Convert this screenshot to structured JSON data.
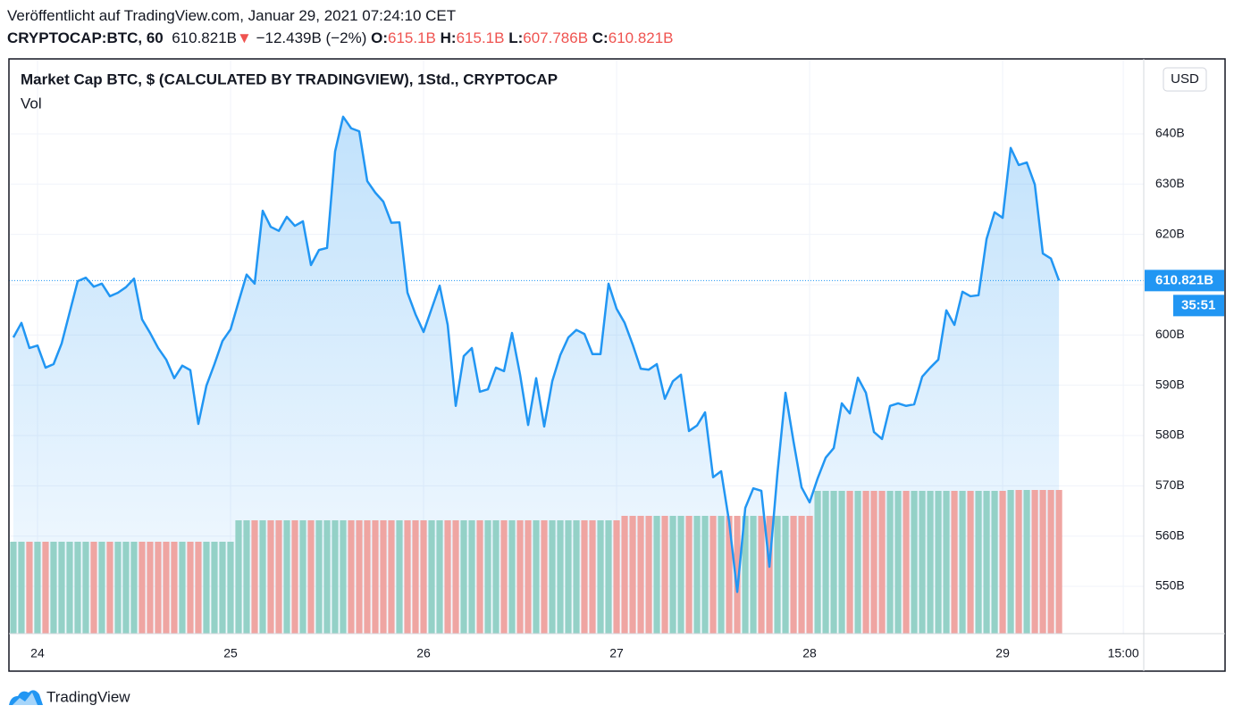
{
  "header": {
    "published": "Veröffentlicht auf TradingView.com, Januar 29, 2021 07:24:10 CET",
    "symbol": "CRYPTOCAP:BTC, 60",
    "last": "610.821B",
    "arrow": "▼",
    "change": "−12.439B (−2%)",
    "open_label": "O:",
    "open": "615.1B",
    "high_label": "H:",
    "high": "615.1B",
    "low_label": "L:",
    "low": "607.786B",
    "close_label": "C:",
    "close": "610.821B"
  },
  "chart_data": {
    "type": "line",
    "currency": "USD",
    "countdown": "35:51",
    "x": [
      23.875,
      23.9167,
      23.9583,
      24,
      24.0417,
      24.0833,
      24.125,
      24.1667,
      24.2083,
      24.25,
      24.2917,
      24.3333,
      24.375,
      24.4167,
      24.4583,
      24.5,
      24.5417,
      24.5833,
      24.625,
      24.6667,
      24.7083,
      24.75,
      24.7917,
      24.8333,
      24.875,
      24.9167,
      24.9583,
      25,
      25.0417,
      25.0833,
      25.125,
      25.1667,
      25.2083,
      25.25,
      25.2917,
      25.3333,
      25.375,
      25.4167,
      25.4583,
      25.5,
      25.5417,
      25.5833,
      25.625,
      25.6667,
      25.7083,
      25.75,
      25.7917,
      25.8333,
      25.875,
      25.9167,
      25.9583,
      26,
      26.0417,
      26.0833,
      26.125,
      26.1667,
      26.2083,
      26.25,
      26.2917,
      26.3333,
      26.375,
      26.4167,
      26.4583,
      26.5,
      26.5417,
      26.5833,
      26.625,
      26.6667,
      26.7083,
      26.75,
      26.7917,
      26.8333,
      26.875,
      26.9167,
      26.9583,
      27,
      27.0417,
      27.0833,
      27.125,
      27.1667,
      27.2083,
      27.25,
      27.2917,
      27.3333,
      27.375,
      27.4167,
      27.4583,
      27.5,
      27.5417,
      27.5833,
      27.625,
      27.6667,
      27.7083,
      27.75,
      27.7917,
      27.8333,
      27.875,
      27.9167,
      27.9583,
      28,
      28.0417,
      28.0833,
      28.125,
      28.1667,
      28.2083,
      28.25,
      28.2917,
      28.3333,
      28.375,
      28.4167,
      28.4583,
      28.5,
      28.5417,
      28.5833,
      28.625,
      28.6667,
      28.7083,
      28.75,
      28.7917,
      28.8333,
      28.875,
      28.9167,
      28.9583,
      29,
      29.0417,
      29.0833,
      29.125,
      29.1667,
      29.2083,
      29.25,
      29.2917
    ],
    "series": [
      {
        "name": "Market Cap BTC, $ (CALCULATED BY TRADINGVIEW), 1Std., CRYPTOCAP",
        "color": "#2196f3",
        "values": [
          599.5,
          602.4,
          597.4,
          597.9,
          593.5,
          594.2,
          598.3,
          604.5,
          610.7,
          611.4,
          609.6,
          610.2,
          607.7,
          608.4,
          609.5,
          611.2,
          603.1,
          600.4,
          597.4,
          595.1,
          591.4,
          593.9,
          593.0,
          582.3,
          589.9,
          594.2,
          598.8,
          601.1,
          606.6,
          612.0,
          610.2,
          624.7,
          621.5,
          620.7,
          623.5,
          621.7,
          622.6,
          613.9,
          616.9,
          617.3,
          636.5,
          643.4,
          641.1,
          640.5,
          630.6,
          628.3,
          626.5,
          622.3,
          622.4,
          608.4,
          604.1,
          600.6,
          605.2,
          609.8,
          602.0,
          585.9,
          595.8,
          597.4,
          588.7,
          589.2,
          593.5,
          592.8,
          600.4,
          592.1,
          582.1,
          591.4,
          581.8,
          590.8,
          596.0,
          599.5,
          601.0,
          600.2,
          596.2,
          596.2,
          610.2,
          605.2,
          602.4,
          598.1,
          593.3,
          593.1,
          594.2,
          587.3,
          590.8,
          592.1,
          580.9,
          582.0,
          584.6,
          571.7,
          572.9,
          562.8,
          548.9,
          565.6,
          569.5,
          569.0,
          553.9,
          572.5,
          588.5,
          578.8,
          569.7,
          566.7,
          571.5,
          575.6,
          577.5,
          586.4,
          584.4,
          591.5,
          588.5,
          580.7,
          579.3,
          585.9,
          586.4,
          585.9,
          586.2,
          591.7,
          593.5,
          595.1,
          604.9,
          602.0,
          608.6,
          607.7,
          607.9,
          619.1,
          624.4,
          623.3,
          637.2,
          633.8,
          634.3,
          629.9,
          616.2,
          615.2,
          610.821
        ]
      },
      {
        "name": "Vol",
        "type": "bar",
        "axis": "volume",
        "up_color": "#94d1c7",
        "down_color": "#efa5a2",
        "values": [
          103,
          103,
          103,
          103,
          103,
          103,
          103,
          103,
          103,
          103,
          103,
          103,
          103,
          103,
          103,
          103,
          103,
          103,
          103,
          103,
          103,
          103,
          103,
          103,
          103,
          103,
          103,
          103,
          127,
          127,
          127,
          127,
          127,
          127,
          127,
          127,
          127,
          127,
          127,
          127,
          127,
          127,
          127,
          127,
          127,
          127,
          127,
          127,
          127,
          127,
          127,
          127,
          127,
          127,
          127,
          127,
          127,
          127,
          127,
          127,
          127,
          127,
          127,
          127,
          127,
          127,
          127,
          127,
          127,
          127,
          127,
          127,
          127,
          127,
          127,
          127,
          132,
          132,
          132,
          132,
          132,
          132,
          132,
          132,
          132,
          132,
          132,
          132,
          132,
          132,
          132,
          132,
          132,
          132,
          132,
          132,
          132,
          132,
          132,
          132,
          160,
          160,
          160,
          160,
          160,
          160,
          160,
          160,
          160,
          160,
          160,
          160,
          160,
          160,
          160,
          160,
          160,
          160,
          160,
          160,
          160,
          160,
          160,
          160,
          161,
          161,
          161,
          161,
          161,
          161,
          161
        ]
      }
    ],
    "volume_lim": [
      0,
      644
    ],
    "xlim": [
      23.852,
      29.731
    ],
    "xticks": [
      24,
      25,
      26,
      27,
      28,
      29,
      {
        "value": 29.625,
        "label": "15:00"
      }
    ],
    "ylim": [
      540.6,
      654.9
    ],
    "yticks": [
      {
        "value": 550,
        "label": "550B"
      },
      {
        "value": 560,
        "label": "560B"
      },
      {
        "value": 570,
        "label": "570B"
      },
      {
        "value": 580,
        "label": "580B"
      },
      {
        "value": 590,
        "label": "590B"
      },
      {
        "value": 600,
        "label": "600B"
      },
      {
        "value": 610,
        "label": "610B"
      },
      {
        "value": 620,
        "label": "620B"
      },
      {
        "value": 630,
        "label": "630B"
      },
      {
        "value": 640,
        "label": "640B"
      }
    ],
    "grid": true
  },
  "footer": {
    "brand": "TradingView"
  }
}
